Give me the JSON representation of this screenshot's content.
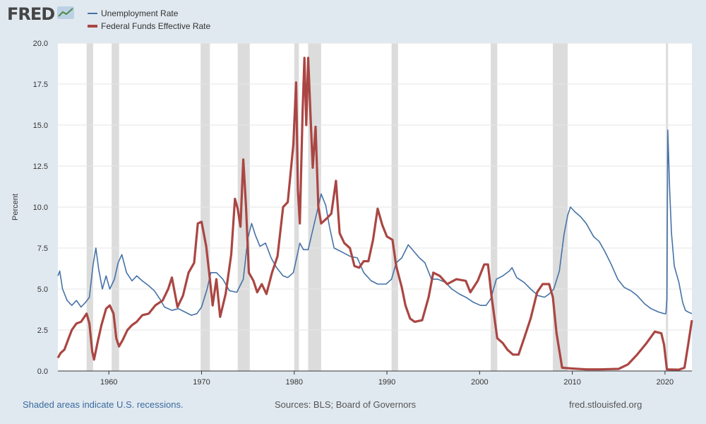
{
  "header": {
    "logo_text": "FRED",
    "logo_icon": "chart-line-icon"
  },
  "colors": {
    "unemployment": "#4572a7",
    "fedfunds": "#aa4643",
    "recession": "#dcdcdc",
    "plot_bg": "#ffffff",
    "grid": "#e6e6e6"
  },
  "footer": {
    "recession_note": "Shaded areas indicate U.S. recessions.",
    "sources": "Sources: BLS; Board of Governors",
    "site": "fred.stlouisfed.org"
  },
  "chart_data": {
    "type": "line",
    "title": "",
    "xlabel": "",
    "ylabel": "Percent",
    "xlim": [
      1954.5,
      2022.9
    ],
    "ylim": [
      0,
      20
    ],
    "x_ticks": [
      1960,
      1970,
      1980,
      1990,
      2000,
      2010,
      2020
    ],
    "y_ticks": [
      "0.0",
      "2.5",
      "5.0",
      "7.5",
      "10.0",
      "12.5",
      "15.0",
      "17.5",
      "20.0"
    ],
    "grid": true,
    "legend": "top-left",
    "recessions": [
      [
        1957.6,
        1958.3
      ],
      [
        1960.3,
        1961.1
      ],
      [
        1969.9,
        1970.9
      ],
      [
        1973.9,
        1975.2
      ],
      [
        1980.0,
        1980.5
      ],
      [
        1981.5,
        1982.9
      ],
      [
        1990.5,
        1991.2
      ],
      [
        2001.2,
        2001.9
      ],
      [
        2007.9,
        2009.5
      ],
      [
        2020.1,
        2020.3
      ]
    ],
    "series": [
      {
        "name": "Unemployment Rate",
        "points": [
          [
            1954.5,
            5.8
          ],
          [
            1954.7,
            6.1
          ],
          [
            1955.0,
            5.0
          ],
          [
            1955.5,
            4.3
          ],
          [
            1956.0,
            4.0
          ],
          [
            1956.5,
            4.3
          ],
          [
            1957.0,
            3.9
          ],
          [
            1957.5,
            4.2
          ],
          [
            1957.9,
            4.5
          ],
          [
            1958.3,
            6.5
          ],
          [
            1958.6,
            7.5
          ],
          [
            1958.9,
            6.2
          ],
          [
            1959.3,
            5.0
          ],
          [
            1959.7,
            5.8
          ],
          [
            1960.1,
            5.0
          ],
          [
            1960.6,
            5.6
          ],
          [
            1961.0,
            6.6
          ],
          [
            1961.4,
            7.1
          ],
          [
            1961.9,
            6.0
          ],
          [
            1962.5,
            5.5
          ],
          [
            1963.0,
            5.8
          ],
          [
            1963.6,
            5.5
          ],
          [
            1964.3,
            5.2
          ],
          [
            1964.9,
            4.9
          ],
          [
            1965.5,
            4.4
          ],
          [
            1966.0,
            3.9
          ],
          [
            1966.8,
            3.7
          ],
          [
            1967.5,
            3.8
          ],
          [
            1968.2,
            3.6
          ],
          [
            1968.9,
            3.4
          ],
          [
            1969.5,
            3.5
          ],
          [
            1970.0,
            3.9
          ],
          [
            1970.6,
            5.0
          ],
          [
            1971.0,
            6.0
          ],
          [
            1971.6,
            6.0
          ],
          [
            1972.3,
            5.6
          ],
          [
            1973.0,
            4.9
          ],
          [
            1973.8,
            4.8
          ],
          [
            1974.5,
            5.6
          ],
          [
            1975.0,
            8.1
          ],
          [
            1975.4,
            9.0
          ],
          [
            1975.8,
            8.3
          ],
          [
            1976.3,
            7.6
          ],
          [
            1976.9,
            7.8
          ],
          [
            1977.5,
            6.9
          ],
          [
            1978.1,
            6.3
          ],
          [
            1978.8,
            5.8
          ],
          [
            1979.3,
            5.7
          ],
          [
            1979.9,
            6.0
          ],
          [
            1980.3,
            7.0
          ],
          [
            1980.6,
            7.8
          ],
          [
            1981.0,
            7.4
          ],
          [
            1981.5,
            7.4
          ],
          [
            1982.0,
            8.6
          ],
          [
            1982.5,
            9.8
          ],
          [
            1982.9,
            10.8
          ],
          [
            1983.4,
            10.1
          ],
          [
            1983.8,
            8.8
          ],
          [
            1984.3,
            7.5
          ],
          [
            1985.0,
            7.3
          ],
          [
            1986.0,
            7.0
          ],
          [
            1986.8,
            6.9
          ],
          [
            1987.5,
            6.0
          ],
          [
            1988.3,
            5.5
          ],
          [
            1989.0,
            5.3
          ],
          [
            1989.9,
            5.3
          ],
          [
            1990.5,
            5.6
          ],
          [
            1991.0,
            6.6
          ],
          [
            1991.6,
            6.9
          ],
          [
            1992.3,
            7.7
          ],
          [
            1992.9,
            7.3
          ],
          [
            1993.5,
            6.9
          ],
          [
            1994.1,
            6.6
          ],
          [
            1994.8,
            5.6
          ],
          [
            1995.5,
            5.6
          ],
          [
            1996.3,
            5.4
          ],
          [
            1997.0,
            5.0
          ],
          [
            1997.8,
            4.7
          ],
          [
            1998.5,
            4.5
          ],
          [
            1999.3,
            4.2
          ],
          [
            2000.1,
            4.0
          ],
          [
            2000.7,
            4.0
          ],
          [
            2001.2,
            4.4
          ],
          [
            2001.8,
            5.6
          ],
          [
            2002.5,
            5.8
          ],
          [
            2003.2,
            6.1
          ],
          [
            2003.5,
            6.3
          ],
          [
            2004.0,
            5.7
          ],
          [
            2004.8,
            5.4
          ],
          [
            2005.5,
            5.0
          ],
          [
            2006.3,
            4.6
          ],
          [
            2007.0,
            4.5
          ],
          [
            2007.5,
            4.7
          ],
          [
            2008.0,
            5.0
          ],
          [
            2008.6,
            6.1
          ],
          [
            2009.1,
            8.3
          ],
          [
            2009.5,
            9.5
          ],
          [
            2009.8,
            10.0
          ],
          [
            2010.3,
            9.7
          ],
          [
            2010.9,
            9.4
          ],
          [
            2011.5,
            9.0
          ],
          [
            2012.3,
            8.2
          ],
          [
            2012.9,
            7.9
          ],
          [
            2013.5,
            7.3
          ],
          [
            2014.2,
            6.5
          ],
          [
            2014.9,
            5.6
          ],
          [
            2015.6,
            5.1
          ],
          [
            2016.3,
            4.9
          ],
          [
            2017.0,
            4.6
          ],
          [
            2017.8,
            4.1
          ],
          [
            2018.5,
            3.8
          ],
          [
            2019.3,
            3.6
          ],
          [
            2019.9,
            3.5
          ],
          [
            2020.1,
            3.5
          ],
          [
            2020.2,
            4.4
          ],
          [
            2020.3,
            14.7
          ],
          [
            2020.5,
            11.1
          ],
          [
            2020.7,
            8.4
          ],
          [
            2021.0,
            6.4
          ],
          [
            2021.5,
            5.4
          ],
          [
            2021.9,
            4.2
          ],
          [
            2022.2,
            3.7
          ],
          [
            2022.5,
            3.6
          ],
          [
            2022.9,
            3.5
          ]
        ]
      },
      {
        "name": "Federal Funds Effective Rate",
        "points": [
          [
            1954.5,
            0.8
          ],
          [
            1954.8,
            1.1
          ],
          [
            1955.2,
            1.3
          ],
          [
            1955.6,
            1.9
          ],
          [
            1956.0,
            2.5
          ],
          [
            1956.5,
            2.9
          ],
          [
            1957.0,
            3.0
          ],
          [
            1957.6,
            3.5
          ],
          [
            1957.9,
            2.9
          ],
          [
            1958.2,
            1.2
          ],
          [
            1958.4,
            0.7
          ],
          [
            1958.8,
            1.8
          ],
          [
            1959.2,
            2.8
          ],
          [
            1959.7,
            3.8
          ],
          [
            1960.1,
            4.0
          ],
          [
            1960.5,
            3.5
          ],
          [
            1960.8,
            2.0
          ],
          [
            1961.1,
            1.5
          ],
          [
            1961.5,
            1.9
          ],
          [
            1962.0,
            2.5
          ],
          [
            1962.5,
            2.8
          ],
          [
            1963.0,
            3.0
          ],
          [
            1963.6,
            3.4
          ],
          [
            1964.3,
            3.5
          ],
          [
            1965.0,
            4.0
          ],
          [
            1965.8,
            4.3
          ],
          [
            1966.4,
            5.0
          ],
          [
            1966.8,
            5.7
          ],
          [
            1967.4,
            3.9
          ],
          [
            1968.0,
            4.6
          ],
          [
            1968.6,
            6.0
          ],
          [
            1969.2,
            6.6
          ],
          [
            1969.6,
            9.0
          ],
          [
            1970.0,
            9.1
          ],
          [
            1970.5,
            7.6
          ],
          [
            1970.9,
            5.6
          ],
          [
            1971.2,
            4.0
          ],
          [
            1971.6,
            5.6
          ],
          [
            1972.0,
            3.3
          ],
          [
            1972.6,
            4.7
          ],
          [
            1973.2,
            7.1
          ],
          [
            1973.6,
            10.5
          ],
          [
            1973.9,
            9.9
          ],
          [
            1974.2,
            8.8
          ],
          [
            1974.5,
            12.9
          ],
          [
            1974.8,
            10.0
          ],
          [
            1975.1,
            6.0
          ],
          [
            1975.6,
            5.5
          ],
          [
            1976.0,
            4.8
          ],
          [
            1976.5,
            5.3
          ],
          [
            1977.0,
            4.7
          ],
          [
            1977.6,
            6.0
          ],
          [
            1978.2,
            7.0
          ],
          [
            1978.8,
            10.0
          ],
          [
            1979.3,
            10.3
          ],
          [
            1979.9,
            13.8
          ],
          [
            1980.2,
            17.6
          ],
          [
            1980.4,
            11.0
          ],
          [
            1980.6,
            9.0
          ],
          [
            1980.9,
            15.8
          ],
          [
            1981.1,
            19.1
          ],
          [
            1981.3,
            15.0
          ],
          [
            1981.5,
            19.1
          ],
          [
            1981.8,
            15.0
          ],
          [
            1982.0,
            12.4
          ],
          [
            1982.3,
            14.9
          ],
          [
            1982.6,
            10.0
          ],
          [
            1982.9,
            9.0
          ],
          [
            1983.5,
            9.3
          ],
          [
            1984.0,
            9.6
          ],
          [
            1984.5,
            11.6
          ],
          [
            1984.9,
            8.4
          ],
          [
            1985.4,
            7.8
          ],
          [
            1986.0,
            7.5
          ],
          [
            1986.5,
            6.4
          ],
          [
            1987.0,
            6.3
          ],
          [
            1987.5,
            6.7
          ],
          [
            1988.0,
            6.7
          ],
          [
            1988.5,
            8.0
          ],
          [
            1989.0,
            9.9
          ],
          [
            1989.5,
            8.9
          ],
          [
            1990.0,
            8.2
          ],
          [
            1990.6,
            8.0
          ],
          [
            1991.0,
            6.4
          ],
          [
            1991.6,
            5.1
          ],
          [
            1992.0,
            4.0
          ],
          [
            1992.5,
            3.2
          ],
          [
            1993.0,
            3.0
          ],
          [
            1993.8,
            3.1
          ],
          [
            1994.5,
            4.5
          ],
          [
            1995.0,
            6.0
          ],
          [
            1995.7,
            5.8
          ],
          [
            1996.5,
            5.3
          ],
          [
            1997.5,
            5.6
          ],
          [
            1998.5,
            5.5
          ],
          [
            1999.0,
            4.8
          ],
          [
            1999.8,
            5.5
          ],
          [
            2000.5,
            6.5
          ],
          [
            2000.9,
            6.5
          ],
          [
            2001.3,
            4.5
          ],
          [
            2001.9,
            2.0
          ],
          [
            2002.5,
            1.7
          ],
          [
            2003.0,
            1.3
          ],
          [
            2003.6,
            1.0
          ],
          [
            2004.2,
            1.0
          ],
          [
            2004.8,
            2.0
          ],
          [
            2005.5,
            3.2
          ],
          [
            2006.2,
            4.8
          ],
          [
            2006.8,
            5.3
          ],
          [
            2007.5,
            5.3
          ],
          [
            2007.9,
            4.5
          ],
          [
            2008.3,
            2.3
          ],
          [
            2008.9,
            0.2
          ],
          [
            2010.0,
            0.15
          ],
          [
            2011.5,
            0.1
          ],
          [
            2013.0,
            0.1
          ],
          [
            2015.0,
            0.13
          ],
          [
            2016.0,
            0.4
          ],
          [
            2017.0,
            1.0
          ],
          [
            2018.0,
            1.7
          ],
          [
            2018.9,
            2.4
          ],
          [
            2019.6,
            2.3
          ],
          [
            2019.9,
            1.6
          ],
          [
            2020.2,
            0.1
          ],
          [
            2021.5,
            0.08
          ],
          [
            2022.1,
            0.2
          ],
          [
            2022.5,
            1.6
          ],
          [
            2022.9,
            3.1
          ]
        ]
      }
    ]
  }
}
